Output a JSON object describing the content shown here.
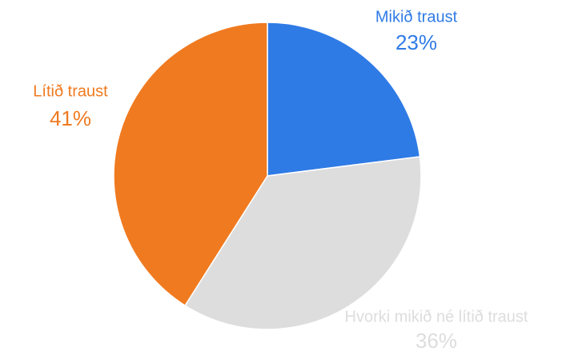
{
  "chart_data": {
    "type": "pie",
    "categories": [
      "Mikið traust",
      "Hvorki mikið né lítið traust",
      "Lítið traust"
    ],
    "values": [
      23,
      36,
      41
    ],
    "value_labels": [
      "23%",
      "36%",
      "41%"
    ],
    "colors": [
      "#2f7be6",
      "#dddddd",
      "#f07a20"
    ]
  }
}
